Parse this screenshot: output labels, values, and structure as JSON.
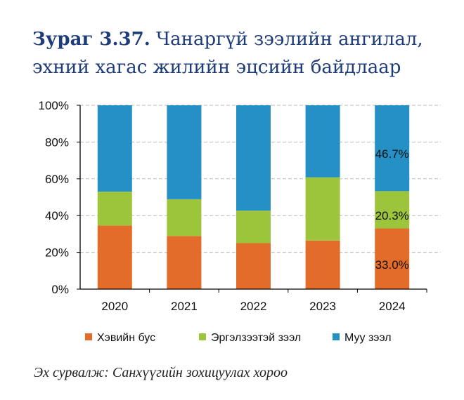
{
  "title": {
    "number": "Зураг 3.37.",
    "text": "Чанаргүй зээлийн ангилал, эхний хагас жилийн эцсийн байдлаар"
  },
  "source": "Эх сурвалж: Санхүүгийн зохицуулах хороо",
  "chart_data": {
    "type": "bar",
    "stacked": true,
    "categories": [
      "2020",
      "2021",
      "2022",
      "2023",
      "2024"
    ],
    "series": [
      {
        "name": "Хэвийн бус",
        "color": "#e46c2a",
        "values": [
          34.6,
          28.9,
          25.0,
          26.4,
          33.0
        ]
      },
      {
        "name": "Эргэлзээтэй зээл",
        "color": "#9dc53b",
        "values": [
          18.4,
          20.0,
          17.7,
          34.4,
          20.3
        ]
      },
      {
        "name": "Муу зээл",
        "color": "#2490c6",
        "values": [
          47.0,
          51.1,
          57.3,
          39.2,
          46.7
        ]
      }
    ],
    "data_labels": [
      {
        "category": "2024",
        "labels": [
          "33.0%",
          "20.3%",
          "46.7%"
        ]
      }
    ],
    "yticks": [
      "0%",
      "20%",
      "40%",
      "60%",
      "80%",
      "100%"
    ],
    "ylim": [
      0,
      100
    ],
    "grid": true,
    "legend": "bottom",
    "xlabel": "",
    "ylabel": ""
  }
}
